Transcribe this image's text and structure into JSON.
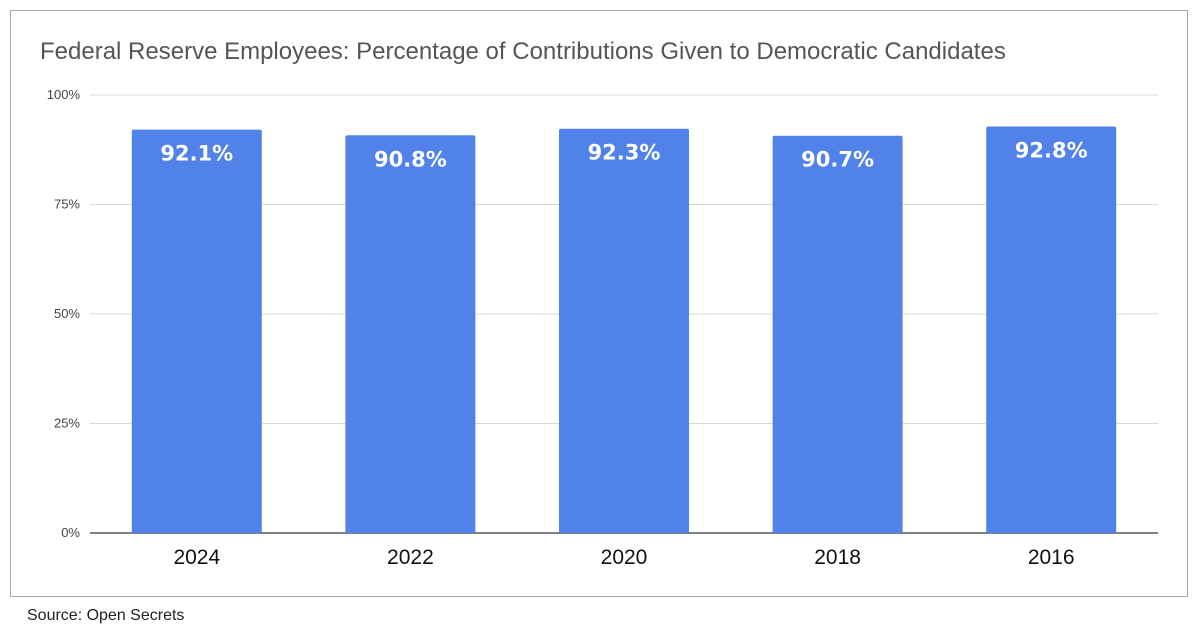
{
  "chart_data": {
    "type": "bar",
    "title": "Federal Reserve Employees: Percentage of Contributions Given to Democratic Candidates",
    "categories": [
      "2024",
      "2022",
      "2020",
      "2018",
      "2016"
    ],
    "values": [
      92.1,
      90.8,
      92.3,
      90.7,
      92.8
    ],
    "data_labels": [
      "92.1%",
      "90.8%",
      "92.3%",
      "90.7%",
      "92.8%"
    ],
    "ylim": [
      0,
      100
    ],
    "yticks": [
      0,
      25,
      50,
      75,
      100
    ],
    "ytick_labels": [
      "0%",
      "25%",
      "50%",
      "75%",
      "100%"
    ],
    "xlabel": "",
    "ylabel": "",
    "grid": true,
    "legend": "none",
    "bar_color": "#5182ea"
  },
  "source": "Source: Open Secrets"
}
